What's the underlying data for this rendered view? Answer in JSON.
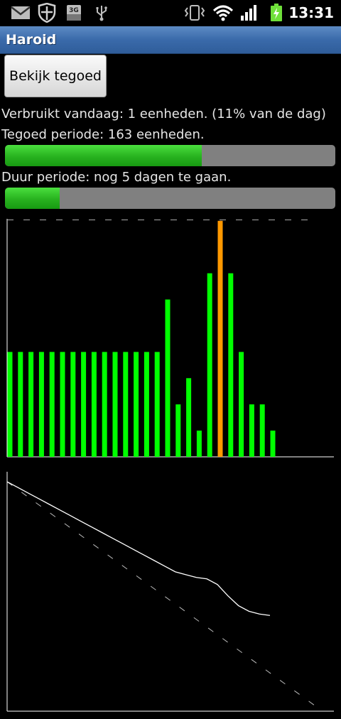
{
  "status_bar": {
    "time": "13:31",
    "network_badge": "3G",
    "icons": [
      "mail-icon",
      "shield-icon",
      "sim-3g-icon",
      "usb-icon",
      "vibrate-icon",
      "wifi-icon",
      "signal-icon",
      "battery-charging-icon"
    ]
  },
  "app": {
    "title": "Haroid"
  },
  "button": {
    "label": "Bekijk tegoed"
  },
  "info": {
    "used_today": "Verbruikt vandaag: 1 eenheden. (11% van de dag)",
    "credit_period": "Tegoed periode: 163 eenheden.",
    "duration_period": "Duur periode: nog 5 dagen te gaan."
  },
  "progress": {
    "credit_fraction": 0.596,
    "duration_fraction": 0.165
  },
  "colors": {
    "bar_normal": "#00ff00",
    "bar_highlight": "#ff9900",
    "line": "#ffffff"
  },
  "chart_data": [
    {
      "type": "bar",
      "values": [
        4,
        4,
        4,
        4,
        4,
        4,
        4,
        4,
        4,
        4,
        4,
        4,
        4,
        4,
        4,
        6,
        2,
        3,
        1,
        7,
        9,
        7,
        4,
        2,
        2,
        1
      ],
      "highlight_index": 20,
      "reference_line": 9,
      "ylim": [
        0,
        9.2
      ]
    },
    {
      "type": "line",
      "actual": [
        163,
        159,
        155,
        151,
        147,
        143,
        139,
        135,
        131,
        127,
        123,
        119,
        115,
        111,
        107,
        103,
        99,
        97,
        95,
        94,
        90,
        82,
        75,
        71,
        69,
        68
      ],
      "ideal_start": 163,
      "ideal_end": 0,
      "ideal_points": 31,
      "ylim": [
        0,
        170
      ]
    }
  ]
}
